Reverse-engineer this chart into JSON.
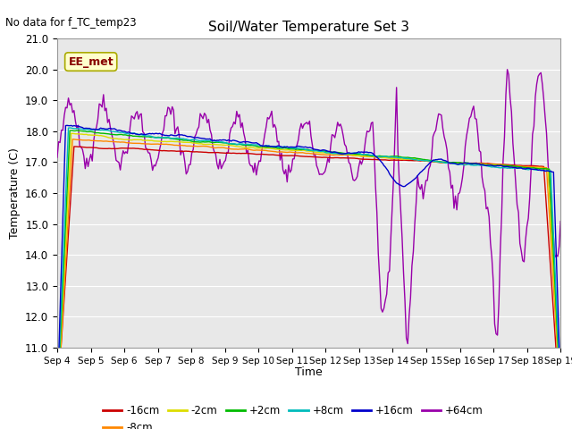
{
  "title": "Soil/Water Temperature Set 3",
  "xlabel": "Time",
  "ylabel": "Temperature (C)",
  "no_data_text": "No data for f_TC_temp23",
  "annotation_text": "EE_met",
  "ylim": [
    11.0,
    21.0
  ],
  "yticks": [
    11.0,
    12.0,
    13.0,
    14.0,
    15.0,
    16.0,
    17.0,
    18.0,
    19.0,
    20.0,
    21.0
  ],
  "xtick_labels": [
    "Sep 4",
    "Sep 5",
    "Sep 6",
    "Sep 7",
    "Sep 8",
    "Sep 9",
    "Sep 10",
    "Sep 11",
    "Sep 12",
    "Sep 13",
    "Sep 14",
    "Sep 15",
    "Sep 16",
    "Sep 17",
    "Sep 18",
    "Sep 19"
  ],
  "plot_bg": "#e8e8e8",
  "fig_bg": "#ffffff",
  "grid_color": "#ffffff",
  "series_colors": {
    "-16cm": "#cc0000",
    "-8cm": "#ff8800",
    "-2cm": "#dddd00",
    "+2cm": "#00bb00",
    "+8cm": "#00bbbb",
    "+16cm": "#0000cc",
    "+64cm": "#9900aa"
  }
}
